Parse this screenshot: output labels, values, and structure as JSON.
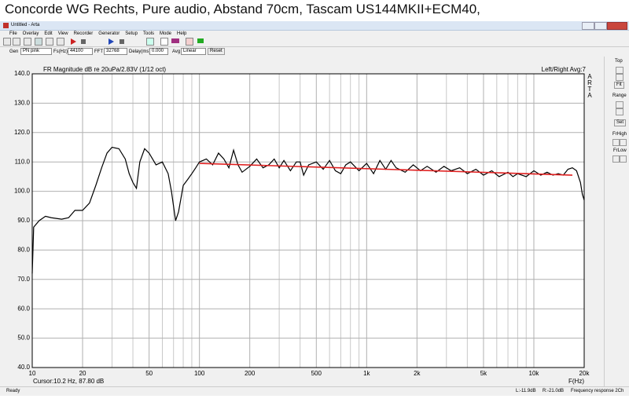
{
  "ui": {
    "caption": "Concorde WG Rechts, Pure audio, Abstand 70cm, Tascam US144MKII+ECM40,",
    "window_title": "Untitled - Arta",
    "menu": [
      "File",
      "Overlay",
      "Edit",
      "View",
      "Recorder",
      "Generator",
      "Setup",
      "Tools",
      "Mode",
      "Help"
    ],
    "controls": {
      "gen_label": "Gen",
      "gen": "PN pink",
      "fs_label": "Fs(Hz)",
      "fs": "44100",
      "fft_label": "FFT",
      "fft": "32768",
      "delay_label": "Delay(ms)",
      "delay": "0.000",
      "avg_label": "Avg",
      "avg": "Linear",
      "reset": "Reset"
    },
    "side": {
      "top": "Top",
      "fit": "Fit",
      "range": "Range",
      "set": "Set",
      "frhigh": "FrHigh",
      "frlow": "FrLow"
    },
    "status": {
      "ready": "Ready",
      "left": "L:-11.9dB",
      "right": "R:-21.0dB",
      "mode": "Frequency response 2Ch"
    }
  },
  "chart_data": {
    "type": "line",
    "title": "FR Magnitude dB re 20uPa/2.83V (1/12 oct)",
    "annotation": "Left/Right Avg:7",
    "brand": "ARTA",
    "cursor": "Cursor:10.2 Hz, 87.80 dB",
    "x_label": "F(Hz)",
    "x_scale": "log",
    "grid": true,
    "xlim": [
      10,
      20000
    ],
    "ylim": [
      40,
      140
    ],
    "xticks": [
      10,
      20,
      50,
      100,
      200,
      500,
      {
        "value": 1000,
        "label": "1k"
      },
      {
        "value": 2000,
        "label": "2k"
      },
      {
        "value": 5000,
        "label": "5k"
      },
      {
        "value": 10000,
        "label": "10k"
      },
      {
        "value": 20000,
        "label": "20k"
      }
    ],
    "xgrid_minor": [
      30,
      40,
      60,
      70,
      80,
      90,
      300,
      400,
      600,
      700,
      800,
      900,
      3000,
      4000,
      6000,
      7000,
      8000,
      9000
    ],
    "yticks": [
      {
        "value": 40,
        "label": "40.0"
      },
      {
        "value": 50,
        "label": "50.0"
      },
      {
        "value": 60,
        "label": "60.0"
      },
      {
        "value": 70,
        "label": "70.0"
      },
      {
        "value": 80,
        "label": "80.0"
      },
      {
        "value": 90,
        "label": "90.0"
      },
      {
        "value": 100,
        "label": "100.0"
      },
      {
        "value": 110,
        "label": "110.0"
      },
      {
        "value": 120,
        "label": "120.0"
      },
      {
        "value": 130,
        "label": "130.0"
      },
      {
        "value": 140,
        "label": "140.0"
      }
    ],
    "series": [
      {
        "color": "#000000",
        "x": [
          10,
          10.2,
          11,
          12,
          13,
          15,
          16.5,
          18,
          20,
          22,
          24,
          26,
          28,
          30,
          33,
          36,
          38,
          40,
          42,
          44,
          47,
          50,
          55,
          60,
          65,
          68,
          72,
          75,
          80,
          85,
          90,
          95,
          100,
          110,
          120,
          130,
          140,
          150,
          160,
          170,
          180,
          200,
          220,
          240,
          260,
          280,
          300,
          320,
          350,
          380,
          400,
          420,
          450,
          500,
          550,
          600,
          650,
          700,
          750,
          800,
          900,
          1000,
          1100,
          1200,
          1300,
          1400,
          1500,
          1700,
          1900,
          2100,
          2300,
          2600,
          2900,
          3200,
          3600,
          4000,
          4500,
          5000,
          5600,
          6200,
          7000,
          7500,
          8000,
          9000,
          10000,
          11000,
          12000,
          13000,
          14000,
          15000,
          16000,
          17000,
          18000,
          19000,
          19500,
          20000
        ],
        "values": [
          72,
          87.8,
          90,
          91.5,
          91,
          90.5,
          91,
          93.5,
          93.5,
          96,
          102,
          108,
          113,
          115,
          114.5,
          111,
          106,
          103,
          101,
          110,
          114.5,
          113,
          109,
          110,
          106,
          100,
          90,
          93,
          102,
          104,
          106,
          108,
          110,
          111,
          109,
          113,
          111,
          108,
          114,
          109,
          106.5,
          108.5,
          111,
          108,
          109,
          111,
          108,
          110.5,
          107,
          110,
          110,
          105.5,
          109,
          110,
          107.5,
          110.5,
          107,
          106,
          109,
          110,
          107,
          109.5,
          106,
          110.5,
          107.5,
          110.5,
          108,
          106.5,
          109,
          107,
          108.5,
          106.5,
          108.5,
          107,
          108,
          106,
          107.5,
          105.5,
          107,
          105,
          106.5,
          105,
          106,
          105,
          107,
          105.5,
          106.5,
          105.5,
          106,
          105.5,
          107.5,
          108,
          107,
          103,
          99,
          97
        ]
      },
      {
        "color": "#e02020",
        "x": [
          100,
          17000
        ],
        "values": [
          109.5,
          105.5
        ]
      }
    ]
  }
}
